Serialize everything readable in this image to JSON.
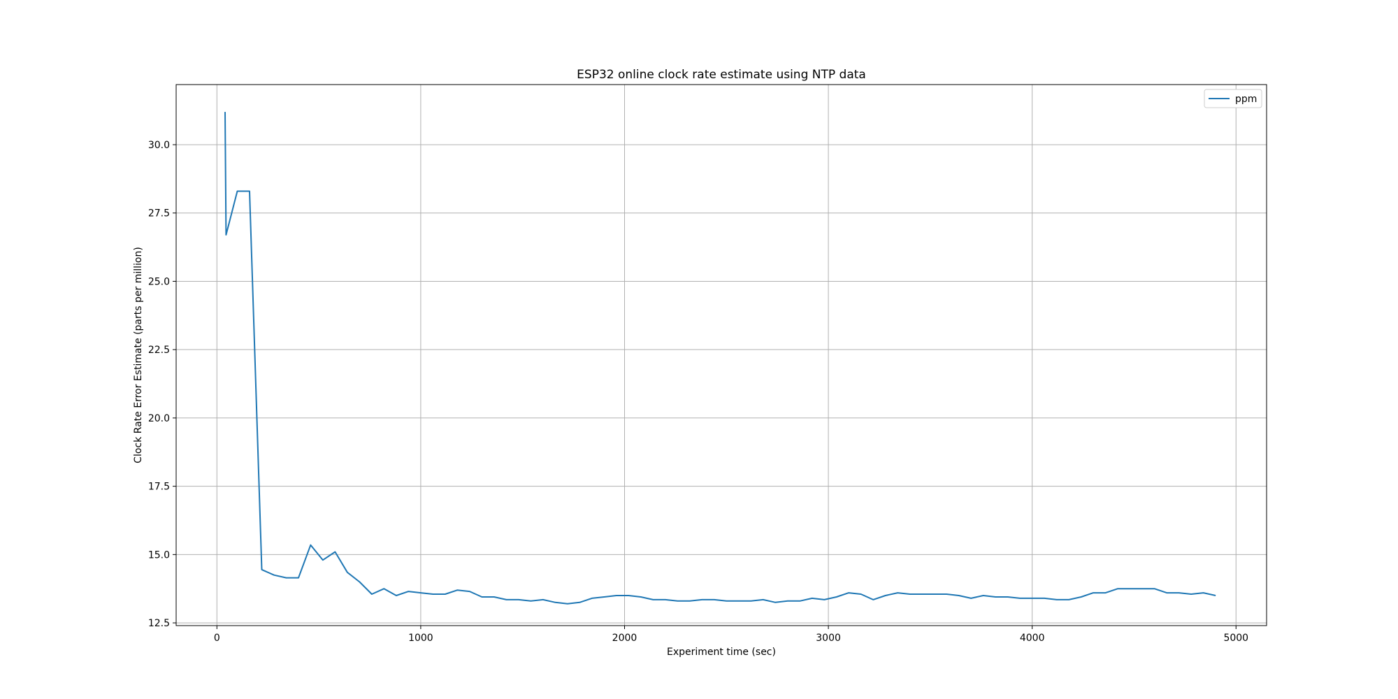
{
  "chart_data": {
    "type": "line",
    "title": "ESP32 online clock rate estimate using NTP data",
    "xlabel": "Experiment time (sec)",
    "ylabel": "Clock Rate Error Estimate (parts per million)",
    "xlim": [
      -200,
      5150
    ],
    "ylim": [
      12.4,
      32.2
    ],
    "xticks": [
      0,
      1000,
      2000,
      3000,
      4000,
      5000
    ],
    "yticks": [
      12.5,
      15.0,
      17.5,
      20.0,
      22.5,
      25.0,
      27.5,
      30.0
    ],
    "xtick_labels": [
      "0",
      "1000",
      "2000",
      "3000",
      "4000",
      "5000"
    ],
    "ytick_labels": [
      "12.5",
      "15.0",
      "17.5",
      "20.0",
      "22.5",
      "25.0",
      "27.5",
      "30.0"
    ],
    "grid": true,
    "legend": {
      "placement": "top-right"
    },
    "series": [
      {
        "name": "ppm",
        "color": "#1f77b4",
        "x": [
          40,
          45,
          100,
          160,
          220,
          280,
          340,
          400,
          460,
          520,
          580,
          640,
          700,
          760,
          820,
          880,
          940,
          1000,
          1060,
          1120,
          1180,
          1240,
          1300,
          1360,
          1420,
          1480,
          1540,
          1600,
          1660,
          1720,
          1780,
          1840,
          1900,
          1960,
          2020,
          2080,
          2140,
          2200,
          2260,
          2320,
          2380,
          2440,
          2500,
          2560,
          2620,
          2680,
          2740,
          2800,
          2860,
          2920,
          2980,
          3040,
          3100,
          3160,
          3220,
          3280,
          3340,
          3400,
          3460,
          3520,
          3580,
          3640,
          3700,
          3760,
          3820,
          3880,
          3940,
          4000,
          4060,
          4120,
          4180,
          4240,
          4300,
          4360,
          4420,
          4480,
          4540,
          4600,
          4660,
          4720,
          4780,
          4840,
          4900
        ],
        "y": [
          31.2,
          26.7,
          28.3,
          28.3,
          14.45,
          14.25,
          14.15,
          14.15,
          15.35,
          14.8,
          15.1,
          14.35,
          14.0,
          13.55,
          13.75,
          13.5,
          13.65,
          13.6,
          13.55,
          13.55,
          13.7,
          13.65,
          13.45,
          13.45,
          13.35,
          13.35,
          13.3,
          13.35,
          13.25,
          13.2,
          13.25,
          13.4,
          13.45,
          13.5,
          13.5,
          13.45,
          13.35,
          13.35,
          13.3,
          13.3,
          13.35,
          13.35,
          13.3,
          13.3,
          13.3,
          13.35,
          13.25,
          13.3,
          13.3,
          13.4,
          13.35,
          13.45,
          13.6,
          13.55,
          13.35,
          13.5,
          13.6,
          13.55,
          13.55,
          13.55,
          13.55,
          13.5,
          13.4,
          13.5,
          13.45,
          13.45,
          13.4,
          13.4,
          13.4,
          13.35,
          13.35,
          13.45,
          13.6,
          13.6,
          13.75,
          13.75,
          13.75,
          13.75,
          13.6,
          13.6,
          13.55,
          13.6,
          13.5
        ]
      }
    ]
  }
}
